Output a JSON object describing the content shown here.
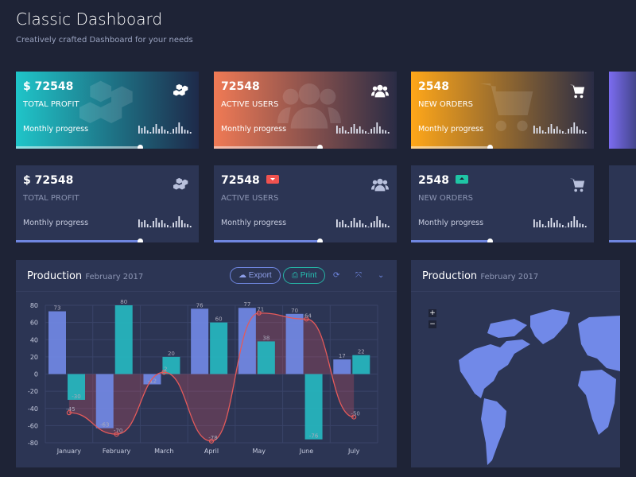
{
  "header": {
    "title": "Classic Dashboard",
    "subtitle": "Creatively crafted Dashboard for your needs"
  },
  "cards_gradient": [
    {
      "value": "$ 72548",
      "label": "TOTAL PROFIT",
      "progress_label": "Monthly progress",
      "icon": "cubes-icon",
      "progress": 0.68,
      "colors": [
        "#1fc5c9",
        "#1e2a4a"
      ]
    },
    {
      "value": "72548",
      "label": "ACTIVE USERS",
      "progress_label": "Monthly progress",
      "icon": "users-icon",
      "progress": 0.58,
      "colors": [
        "#f07a55",
        "#2a2c45"
      ]
    },
    {
      "value": "2548",
      "label": "NEW ORDERS",
      "progress_label": "Monthly progress",
      "icon": "cart-icon",
      "progress": 0.43,
      "colors": [
        "#ffa719",
        "#2a2c45"
      ]
    }
  ],
  "cards_dark": [
    {
      "value": "$ 72548",
      "label": "TOTAL PROFIT",
      "progress_label": "Monthly progress",
      "icon": "cubes-icon",
      "progress": 0.68
    },
    {
      "value": "72548",
      "label": "ACTIVE USERS",
      "progress_label": "Monthly progress",
      "icon": "users-icon",
      "progress": 0.58,
      "badge": "down",
      "badge_color": "#f0524f"
    },
    {
      "value": "2548",
      "label": "NEW ORDERS",
      "progress_label": "Monthly progress",
      "icon": "cart-icon",
      "progress": 0.43,
      "badge": "up",
      "badge_color": "#1fc5a5"
    }
  ],
  "production": {
    "title": "Production",
    "date": "February 2017",
    "export": "Export",
    "print": "Print"
  },
  "map_panel": {
    "title": "Production",
    "date": "February 2017",
    "zoom_in": "+",
    "zoom_out": "−"
  },
  "chart_data": {
    "type": "bar",
    "categories": [
      "January",
      "February",
      "March",
      "April",
      "May",
      "June",
      "July"
    ],
    "series": [
      {
        "type": "bar",
        "color": "#6f86e0",
        "values": [
          73,
          -63,
          -12,
          76,
          77,
          70,
          17
        ]
      },
      {
        "type": "bar",
        "color": "#26b4bd",
        "values": [
          -30,
          80,
          20,
          60,
          38,
          -76,
          22
        ]
      },
      {
        "type": "area-line",
        "color": "#e45a5a",
        "values": [
          -45,
          -70,
          2,
          -78,
          71,
          64,
          -50
        ]
      }
    ],
    "ylim": [
      -80,
      80
    ],
    "yticks": [
      80,
      60,
      40,
      20,
      0,
      -20,
      -40,
      -60,
      -80
    ],
    "grid": true
  }
}
